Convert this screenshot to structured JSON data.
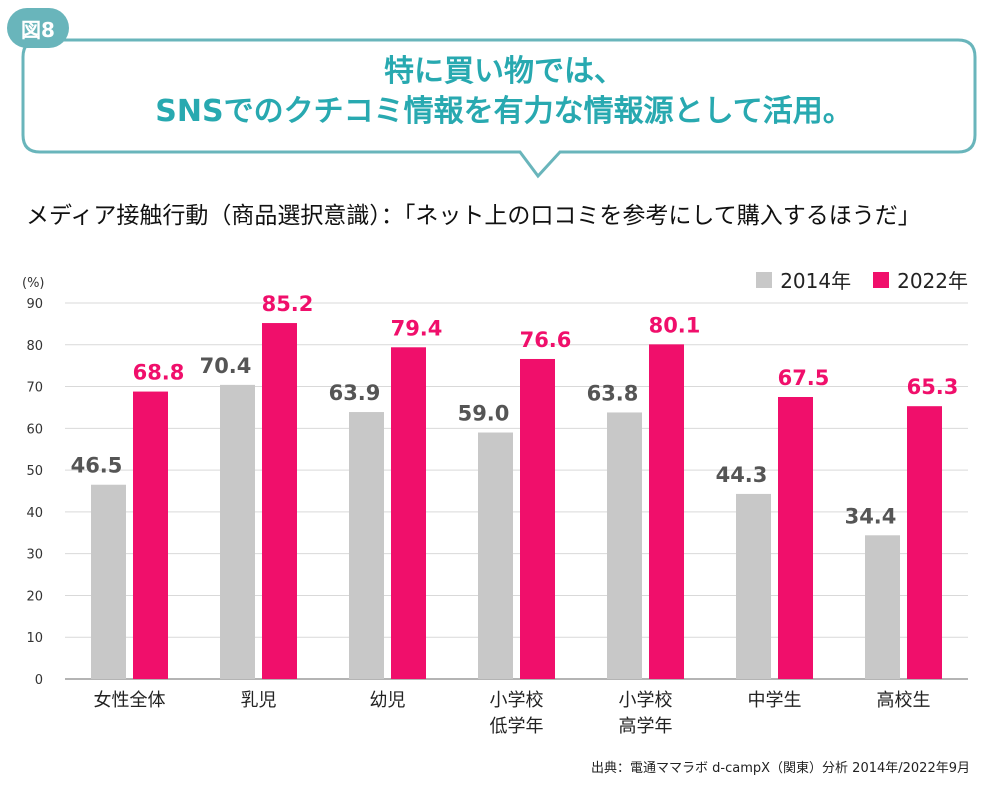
{
  "figure_label": "図8",
  "headline": {
    "line1": "特に買い物では、",
    "line2": "SNSでのクチコミ情報を有力な情報源として活用。"
  },
  "subtitle": "メディア接触行動（商品選択意識）：「ネット上の口コミを参考にして購入するほうだ」",
  "source": "出典：電通ママラボ d-campX（関東）分析 2014年/2022年9月",
  "colors": {
    "accent": "#28a9b0",
    "badge": "#69b5bb",
    "series_2014": "#c8c8c8",
    "series_2022": "#f00f6b",
    "label_2014": "#555555"
  },
  "chart_data": {
    "type": "bar",
    "title": "メディア接触行動（商品選択意識）：「ネット上の口コミを参考にして購入するほうだ」",
    "ylabel": "(%)",
    "xlabel": "",
    "ylim": [
      0,
      90
    ],
    "yticks": [
      0,
      10,
      20,
      30,
      40,
      50,
      60,
      70,
      80,
      90
    ],
    "grid": true,
    "legend_position": "top-right",
    "categories": [
      [
        "女性全体"
      ],
      [
        "乳児"
      ],
      [
        "幼児"
      ],
      [
        "小学校",
        "低学年"
      ],
      [
        "小学校",
        "高学年"
      ],
      [
        "中学生"
      ],
      [
        "高校生"
      ]
    ],
    "series": [
      {
        "name": "2014年",
        "values": [
          46.5,
          70.4,
          63.9,
          59.0,
          63.8,
          44.3,
          34.4
        ],
        "labels": [
          "46.5",
          "70.4",
          "63.9",
          "59.0",
          "63.8",
          "44.3",
          "34.4"
        ]
      },
      {
        "name": "2022年",
        "values": [
          68.8,
          85.2,
          79.4,
          76.6,
          80.1,
          67.5,
          65.3
        ],
        "labels": [
          "68.8",
          "85.2",
          "79.4",
          "76.6",
          "80.1",
          "67.5",
          "65.3"
        ]
      }
    ]
  }
}
